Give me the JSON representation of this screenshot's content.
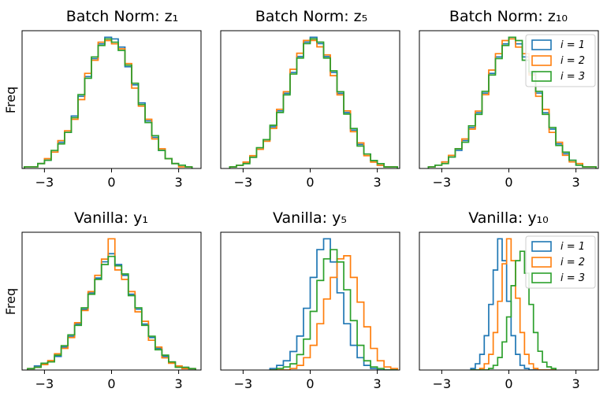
{
  "figure": {
    "y_axis_label": "Freq",
    "series_colors": [
      "#1f77b4",
      "#ff7f0e",
      "#2ca02c"
    ]
  },
  "chart_data": [
    {
      "type": "histogram",
      "title": "Batch Norm: z₁",
      "ylabel": "Freq",
      "xlim": [
        -4,
        4
      ],
      "xticks": [
        "−3",
        "0",
        "3"
      ],
      "grid": false,
      "legend": null,
      "x": [
        -3.75,
        -3.45,
        -3.15,
        -2.85,
        -2.55,
        -2.25,
        -1.95,
        -1.65,
        -1.35,
        -1.05,
        -0.75,
        -0.45,
        -0.15,
        0.15,
        0.45,
        0.75,
        1.05,
        1.35,
        1.65,
        1.95,
        2.25,
        2.55,
        2.85,
        3.15,
        3.45
      ],
      "series": [
        {
          "values": [
            1,
            1,
            3,
            5,
            10,
            16,
            22,
            32,
            44,
            56,
            67,
            76,
            80,
            79,
            74,
            62,
            51,
            40,
            29,
            19,
            11,
            6,
            3,
            2,
            1
          ]
        },
        {
          "values": [
            1,
            1,
            3,
            6,
            10,
            17,
            23,
            30,
            42,
            58,
            66,
            77,
            78,
            76,
            73,
            64,
            49,
            38,
            30,
            18,
            12,
            6,
            3,
            1,
            1
          ]
        },
        {
          "values": [
            1,
            1,
            3,
            5,
            11,
            15,
            22,
            31,
            45,
            55,
            68,
            75,
            79,
            77,
            72,
            63,
            52,
            39,
            28,
            20,
            11,
            6,
            3,
            2,
            1
          ]
        }
      ]
    },
    {
      "type": "histogram",
      "title": "Batch Norm: z₅",
      "ylabel": "",
      "xlim": [
        -4,
        4
      ],
      "xticks": [
        "−3",
        "0",
        "3"
      ],
      "grid": false,
      "legend": null,
      "x": [
        -3.45,
        -3.15,
        -2.85,
        -2.55,
        -2.25,
        -1.95,
        -1.65,
        -1.35,
        -1.05,
        -0.75,
        -0.45,
        -0.15,
        0.15,
        0.45,
        0.75,
        1.05,
        1.35,
        1.65,
        1.95,
        2.25,
        2.55,
        2.85,
        3.15,
        3.45,
        3.75
      ],
      "series": [
        {
          "values": [
            1,
            2,
            4,
            7,
            12,
            18,
            26,
            36,
            47,
            60,
            70,
            79,
            82,
            78,
            70,
            60,
            47,
            35,
            24,
            15,
            9,
            5,
            2,
            1,
            1
          ]
        },
        {
          "values": [
            1,
            2,
            4,
            8,
            12,
            17,
            25,
            37,
            48,
            62,
            72,
            80,
            80,
            76,
            71,
            58,
            46,
            36,
            23,
            16,
            8,
            4,
            2,
            1,
            1
          ]
        },
        {
          "values": [
            1,
            2,
            3,
            7,
            13,
            18,
            27,
            35,
            46,
            59,
            69,
            78,
            81,
            79,
            69,
            61,
            48,
            34,
            25,
            14,
            9,
            5,
            3,
            1,
            1
          ]
        }
      ]
    },
    {
      "type": "histogram",
      "title": "Batch Norm: z₁₀",
      "ylabel": "",
      "xlim": [
        -4,
        4
      ],
      "xticks": [
        "−3",
        "0",
        "3"
      ],
      "grid": false,
      "legend": {
        "placement": "upper right",
        "entries": [
          "i = 1",
          "i = 2",
          "i = 3"
        ]
      },
      "x": [
        -3.45,
        -3.15,
        -2.85,
        -2.55,
        -2.25,
        -1.95,
        -1.65,
        -1.35,
        -1.05,
        -0.75,
        -0.45,
        -0.15,
        0.15,
        0.45,
        0.75,
        1.05,
        1.35,
        1.65,
        1.95,
        2.25,
        2.55,
        2.85,
        3.15,
        3.45,
        3.75
      ],
      "series": [
        {
          "values": [
            1,
            2,
            4,
            7,
            11,
            17,
            25,
            34,
            46,
            58,
            68,
            76,
            80,
            76,
            68,
            58,
            46,
            34,
            24,
            15,
            9,
            5,
            2,
            1,
            1
          ]
        },
        {
          "values": [
            1,
            2,
            4,
            8,
            12,
            18,
            24,
            35,
            45,
            60,
            70,
            78,
            79,
            74,
            70,
            57,
            44,
            36,
            22,
            16,
            8,
            4,
            3,
            1,
            1
          ]
        },
        {
          "values": [
            1,
            2,
            3,
            7,
            12,
            16,
            26,
            33,
            47,
            57,
            67,
            75,
            80,
            78,
            66,
            59,
            47,
            33,
            25,
            14,
            10,
            5,
            2,
            1,
            1
          ]
        }
      ]
    },
    {
      "type": "histogram",
      "title": "Vanilla: y₁",
      "ylabel": "Freq",
      "xlim": [
        -4,
        4
      ],
      "xticks": [
        "−3",
        "0",
        "3"
      ],
      "grid": false,
      "legend": null,
      "x": [
        -3.6,
        -3.3,
        -3.0,
        -2.7,
        -2.4,
        -2.1,
        -1.8,
        -1.5,
        -1.2,
        -0.9,
        -0.6,
        -0.3,
        0.0,
        0.3,
        0.6,
        0.9,
        1.2,
        1.5,
        1.8,
        2.1,
        2.4,
        2.7,
        3.0,
        3.3,
        3.6
      ],
      "series": [
        {
          "values": [
            1,
            3,
            4,
            6,
            10,
            17,
            25,
            34,
            45,
            57,
            68,
            80,
            86,
            78,
            70,
            56,
            45,
            34,
            24,
            16,
            10,
            6,
            3,
            2,
            1
          ]
        },
        {
          "values": [
            1,
            2,
            4,
            7,
            12,
            16,
            24,
            35,
            44,
            58,
            70,
            82,
            97,
            74,
            67,
            58,
            43,
            36,
            22,
            17,
            9,
            5,
            3,
            1,
            1
          ]
        },
        {
          "values": [
            1,
            2,
            5,
            6,
            11,
            18,
            26,
            33,
            46,
            56,
            67,
            78,
            84,
            77,
            71,
            55,
            46,
            33,
            25,
            15,
            11,
            6,
            2,
            2,
            1
          ]
        }
      ]
    },
    {
      "type": "histogram",
      "title": "Vanilla: y₅",
      "ylabel": "",
      "xlim": [
        -4,
        4
      ],
      "xticks": [
        "−3",
        "0",
        "3"
      ],
      "grid": false,
      "legend": null,
      "x": [
        -1.65,
        -1.35,
        -1.05,
        -0.75,
        -0.45,
        -0.15,
        0.15,
        0.45,
        0.75,
        1.05,
        1.35,
        1.65,
        1.95,
        2.25,
        2.55,
        2.85,
        3.15,
        3.45,
        3.75
      ],
      "series": [
        {
          "values": [
            1,
            3,
            6,
            12,
            22,
            40,
            60,
            78,
            85,
            70,
            50,
            30,
            16,
            8,
            3,
            1,
            0,
            0,
            0
          ]
        },
        {
          "values": [
            0,
            0,
            0,
            1,
            3,
            8,
            16,
            30,
            46,
            60,
            72,
            74,
            60,
            44,
            28,
            14,
            6,
            2,
            1
          ]
        },
        {
          "values": [
            0,
            1,
            2,
            4,
            10,
            20,
            38,
            58,
            72,
            78,
            70,
            52,
            32,
            16,
            6,
            2,
            1,
            0,
            0
          ]
        }
      ]
    },
    {
      "type": "histogram",
      "title": "Vanilla: y₁₀",
      "ylabel": "",
      "xlim": [
        -4,
        4
      ],
      "xticks": [
        "−3",
        "0",
        "3"
      ],
      "grid": false,
      "legend": {
        "placement": "upper right",
        "entries": [
          "i = 1",
          "i = 2",
          "i = 3"
        ]
      },
      "x": [
        -1.6,
        -1.4,
        -1.2,
        -1.0,
        -0.8,
        -0.6,
        -0.4,
        -0.2,
        0.0,
        0.2,
        0.4,
        0.6,
        0.8,
        1.0,
        1.2,
        1.4,
        1.6,
        1.8,
        2.0
      ],
      "series": [
        {
          "values": [
            1,
            4,
            10,
            22,
            42,
            64,
            84,
            70,
            44,
            22,
            10,
            3,
            1,
            0,
            0,
            0,
            0,
            0,
            0
          ]
        },
        {
          "values": [
            0,
            0,
            1,
            4,
            10,
            24,
            44,
            68,
            84,
            70,
            46,
            24,
            10,
            4,
            1,
            0,
            0,
            0,
            0
          ]
        },
        {
          "values": [
            0,
            0,
            0,
            0,
            1,
            3,
            8,
            18,
            34,
            54,
            70,
            76,
            62,
            42,
            24,
            12,
            5,
            2,
            1
          ]
        }
      ]
    }
  ]
}
